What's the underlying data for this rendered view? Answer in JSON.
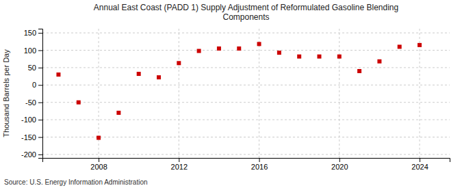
{
  "chart_data": {
    "type": "scatter",
    "title": "Annual East Coast (PADD 1) Supply Adjustment of Reformulated Gasoline Blending\nComponents",
    "ylabel": "Thousand Barrels per Day",
    "annotation": "Source: U.S. Energy Information Administration",
    "x": [
      2006,
      2007,
      2008,
      2009,
      2010,
      2011,
      2012,
      2013,
      2014,
      2015,
      2016,
      2017,
      2018,
      2019,
      2020,
      2021,
      2022,
      2023,
      2024
    ],
    "values": [
      30,
      -50,
      -152,
      -80,
      32,
      22,
      63,
      98,
      105,
      105,
      118,
      93,
      82,
      82,
      82,
      40,
      68,
      110,
      115
    ],
    "color": "#cc0000",
    "marker": "square",
    "xlim": [
      2005.2,
      2025.5
    ],
    "xticks": [
      2008,
      2012,
      2016,
      2020,
      2024
    ],
    "ylim": [
      -210,
      162
    ],
    "yticks": [
      -200,
      -150,
      -100,
      -50,
      0,
      50,
      100,
      150
    ],
    "grid": true
  }
}
